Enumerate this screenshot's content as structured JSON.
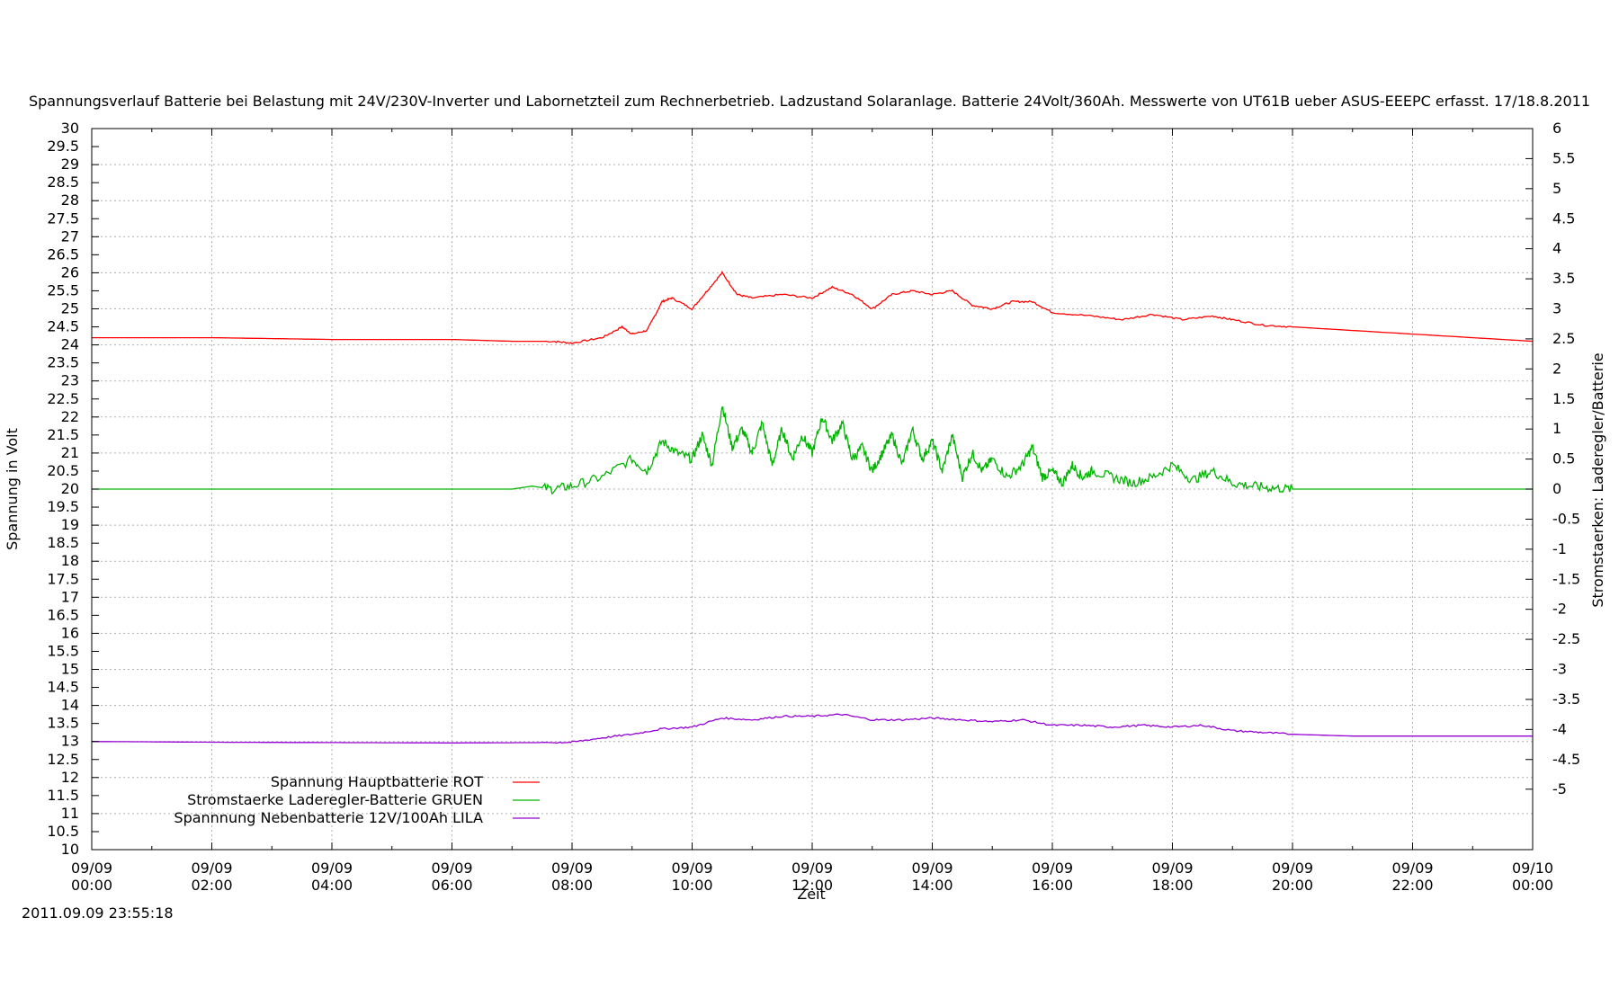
{
  "chart_data": {
    "type": "line",
    "title": "Spannungsverlauf Batterie bei Belastung mit 24V/230V-Inverter und Labornetzteil zum Rechnerbetrieb. Ladzustand Solaranlage. Batterie 24Volt/360Ah. Messwerte von UT61B ueber ASUS-EEEPC erfasst. 17/18.8.2011",
    "xlabel": "Zeit",
    "ylabel": "Spannung in Volt",
    "y2label": "Stromstaerken: Laderegler/Batterie",
    "timestamp": "2011.09.09 23:55:18",
    "grid": true,
    "legend_position": "bottom-left",
    "xlim_hours": [
      0,
      24
    ],
    "ylim": [
      10,
      30
    ],
    "y2lim": [
      -6,
      6
    ],
    "x_ticks": [
      {
        "date": "09/09",
        "time": "00:00"
      },
      {
        "date": "09/09",
        "time": "02:00"
      },
      {
        "date": "09/09",
        "time": "04:00"
      },
      {
        "date": "09/09",
        "time": "06:00"
      },
      {
        "date": "09/09",
        "time": "08:00"
      },
      {
        "date": "09/09",
        "time": "10:00"
      },
      {
        "date": "09/09",
        "time": "12:00"
      },
      {
        "date": "09/09",
        "time": "14:00"
      },
      {
        "date": "09/09",
        "time": "16:00"
      },
      {
        "date": "09/09",
        "time": "18:00"
      },
      {
        "date": "09/09",
        "time": "20:00"
      },
      {
        "date": "09/09",
        "time": "22:00"
      },
      {
        "date": "09/10",
        "time": "00:00"
      }
    ],
    "y_ticks": [
      "10",
      "10.5",
      "11",
      "11.5",
      "12",
      "12.5",
      "13",
      "13.5",
      "14",
      "14.5",
      "15",
      "15.5",
      "16",
      "16.5",
      "17",
      "17.5",
      "18",
      "18.5",
      "19",
      "19.5",
      "20",
      "20.5",
      "21",
      "21.5",
      "22",
      "22.5",
      "23",
      "23.5",
      "24",
      "24.5",
      "25",
      "25.5",
      "26",
      "26.5",
      "27",
      "27.5",
      "28",
      "28.5",
      "29",
      "29.5",
      "30"
    ],
    "y2_ticks": [
      "-4.5",
      "-4",
      "-3.5",
      "-3",
      "-2.5",
      "-2",
      "-1.5",
      "-1",
      "-0.5",
      "0",
      "0.5",
      "1",
      "1.5",
      "2",
      "2.5",
      "3",
      "3.5",
      "4",
      "4.5",
      "5",
      "5.5",
      "6"
    ],
    "y2_extra_tick": "-5",
    "series": [
      {
        "name": "Spannung Hauptbatterie ROT",
        "color": "#ff0000",
        "axis": "left",
        "x": [
          "00:00",
          "02:00",
          "04:00",
          "06:00",
          "07:00",
          "07:40",
          "08:00",
          "08:30",
          "08:50",
          "09:00",
          "09:15",
          "09:30",
          "09:40",
          "10:00",
          "10:15",
          "10:30",
          "10:45",
          "11:00",
          "11:30",
          "12:00",
          "12:20",
          "12:40",
          "13:00",
          "13:20",
          "13:40",
          "14:00",
          "14:20",
          "14:40",
          "15:00",
          "15:20",
          "15:40",
          "16:00",
          "16:40",
          "17:10",
          "17:40",
          "18:10",
          "18:40",
          "19:00",
          "19:30",
          "20:00",
          "21:00",
          "22:00",
          "23:00",
          "24:00"
        ],
        "y": [
          24.2,
          24.2,
          24.15,
          24.15,
          24.1,
          24.1,
          24.05,
          24.2,
          24.5,
          24.3,
          24.4,
          25.2,
          25.3,
          25.0,
          25.5,
          26.0,
          25.4,
          25.3,
          25.4,
          25.3,
          25.6,
          25.4,
          25.0,
          25.4,
          25.5,
          25.4,
          25.5,
          25.1,
          25.0,
          25.2,
          25.2,
          24.9,
          24.8,
          24.7,
          24.85,
          24.7,
          24.8,
          24.7,
          24.55,
          24.5,
          24.4,
          24.3,
          24.2,
          24.1
        ]
      },
      {
        "name": "Stromstaerke Laderegler-Batterie GRUEN",
        "color": "#00b400",
        "axis": "right",
        "x": [
          "00:00",
          "06:00",
          "07:00",
          "07:20",
          "07:40",
          "08:00",
          "08:30",
          "09:00",
          "09:15",
          "09:30",
          "09:45",
          "10:00",
          "10:10",
          "10:20",
          "10:30",
          "10:40",
          "10:50",
          "11:00",
          "11:10",
          "11:20",
          "11:30",
          "11:40",
          "11:50",
          "12:00",
          "12:10",
          "12:20",
          "12:30",
          "12:40",
          "12:50",
          "13:00",
          "13:10",
          "13:20",
          "13:30",
          "13:40",
          "13:50",
          "14:00",
          "14:10",
          "14:20",
          "14:30",
          "14:40",
          "14:50",
          "15:00",
          "15:15",
          "15:30",
          "15:40",
          "15:50",
          "16:00",
          "16:10",
          "16:20",
          "16:30",
          "16:40",
          "17:00",
          "17:20",
          "17:40",
          "18:00",
          "18:20",
          "18:40",
          "19:00",
          "19:20",
          "19:40",
          "20:00",
          "21:00",
          "22:00",
          "24:00"
        ],
        "y": [
          0,
          0,
          0,
          0.05,
          0,
          0.05,
          0.2,
          0.5,
          0.3,
          0.8,
          0.6,
          0.5,
          0.9,
          0.4,
          1.4,
          0.7,
          1.0,
          0.6,
          1.1,
          0.4,
          1.0,
          0.5,
          0.9,
          0.6,
          1.2,
          0.8,
          1.1,
          0.5,
          0.7,
          0.3,
          0.6,
          0.9,
          0.4,
          1.0,
          0.5,
          0.8,
          0.3,
          0.9,
          0.2,
          0.6,
          0.3,
          0.5,
          0.2,
          0.4,
          0.7,
          0.2,
          0.3,
          0.1,
          0.4,
          0.2,
          0.3,
          0.2,
          0.1,
          0.2,
          0.4,
          0.15,
          0.3,
          0.1,
          0.05,
          0.02,
          0,
          0,
          0,
          0
        ]
      },
      {
        "name": "Spannnung Nebenbatterie 12V/100Ah LILA",
        "color": "#9400d3",
        "axis": "left",
        "x": [
          "00:00",
          "02:00",
          "04:00",
          "06:00",
          "07:40",
          "08:00",
          "08:30",
          "09:00",
          "09:30",
          "10:00",
          "10:30",
          "11:00",
          "11:30",
          "12:00",
          "12:30",
          "13:00",
          "13:30",
          "14:00",
          "14:30",
          "15:00",
          "15:30",
          "16:00",
          "16:30",
          "17:00",
          "17:30",
          "18:00",
          "18:30",
          "19:00",
          "19:30",
          "20:00",
          "21:00",
          "22:00",
          "23:00",
          "24:00"
        ],
        "y": [
          13.0,
          12.98,
          12.97,
          12.96,
          12.97,
          12.98,
          13.1,
          13.2,
          13.35,
          13.4,
          13.65,
          13.6,
          13.7,
          13.7,
          13.75,
          13.6,
          13.6,
          13.65,
          13.6,
          13.55,
          13.6,
          13.45,
          13.45,
          13.4,
          13.45,
          13.4,
          13.45,
          13.3,
          13.25,
          13.2,
          13.15,
          13.15,
          13.15,
          13.15
        ]
      }
    ]
  }
}
